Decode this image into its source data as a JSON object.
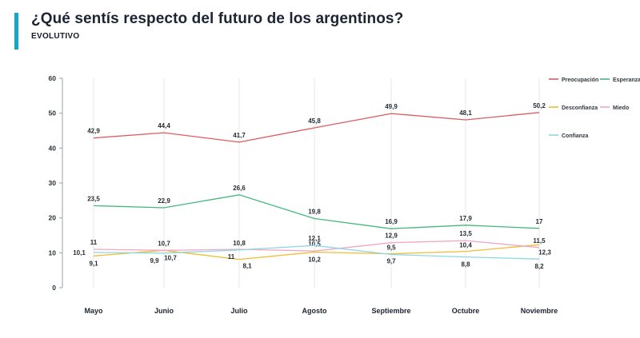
{
  "header": {
    "title": "¿Qué sentís respecto del futuro de los argentinos?",
    "subtitle": "EVOLUTIVO",
    "accent_color": "#15a8c6"
  },
  "chart_data": {
    "type": "line",
    "title": "¿Qué sentís respecto del futuro de los argentinos? - Evolutivo",
    "x": [
      "Mayo",
      "Junio",
      "Julio",
      "Agosto",
      "Septiembre",
      "Octubre",
      "Noviembre"
    ],
    "xlabel": "",
    "ylabel": "",
    "ylim": [
      0,
      60
    ],
    "yticks": [
      0,
      10,
      20,
      30,
      40,
      50,
      60
    ],
    "grid": "vertical",
    "legend_position": "top-right",
    "series": [
      {
        "name": "Preocupación",
        "color": "#dc5c60",
        "values": [
          42.9,
          44.4,
          41.7,
          45.8,
          49.9,
          48.1,
          50.2
        ]
      },
      {
        "name": "Esperanza",
        "color": "#46b97a",
        "values": [
          23.5,
          22.9,
          26.6,
          19.8,
          16.9,
          17.9,
          17
        ]
      },
      {
        "name": "Desconfianza",
        "color": "#eebd31",
        "values": [
          9.1,
          10.7,
          8.1,
          10.2,
          9.7,
          10.4,
          12.3
        ]
      },
      {
        "name": "Miedo",
        "color": "#f2a7c3",
        "values": [
          11,
          10.7,
          11,
          10.5,
          12.9,
          13.5,
          11.5
        ]
      },
      {
        "name": "Confianza",
        "color": "#8ed6e6",
        "values": [
          10.1,
          9.9,
          10.8,
          12.1,
          9.5,
          8.8,
          8.2
        ]
      }
    ]
  }
}
